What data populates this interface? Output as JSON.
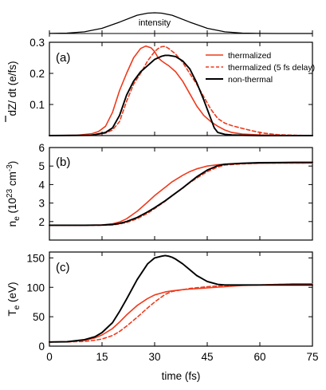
{
  "chart_data": [
    {
      "type": "line",
      "panel": "intensity",
      "annotation": "intensity",
      "xlim": [
        0,
        75
      ],
      "series": [
        {
          "color": "#000000",
          "dash": false,
          "x": [
            0,
            5,
            10,
            15,
            20,
            25,
            28,
            30,
            32,
            35,
            40,
            45,
            50,
            55,
            60,
            65,
            70,
            75
          ],
          "y": [
            0.005,
            0.02,
            0.08,
            0.25,
            0.55,
            0.88,
            0.98,
            1.0,
            0.98,
            0.88,
            0.55,
            0.25,
            0.08,
            0.02,
            0.005,
            0.001,
            0.0,
            0.0
          ]
        }
      ]
    },
    {
      "type": "line",
      "panel": "(a)",
      "panel_label": "(a)",
      "ylabel_main": "dZ",
      "ylabel_rest": "/ dt  (e/fs)",
      "xlim": [
        0,
        75
      ],
      "ylim": [
        0,
        0.3
      ],
      "yticks": [
        0.1,
        0.2,
        0.3
      ],
      "ytick_labels": [
        "0.1",
        "0.2",
        "0.3"
      ],
      "legend_position": "top-right",
      "series": [
        {
          "name": "thermalized",
          "color": "#ee3a1c",
          "dash": false,
          "x": [
            0,
            8,
            12,
            14,
            16,
            18,
            20,
            22,
            24,
            26,
            27.5,
            29,
            30,
            31,
            32,
            33,
            34,
            36,
            38,
            40,
            42,
            44,
            46,
            48,
            50,
            52,
            55,
            60,
            65,
            70,
            75
          ],
          "y": [
            0,
            0.001,
            0.006,
            0.013,
            0.03,
            0.075,
            0.145,
            0.2,
            0.25,
            0.28,
            0.288,
            0.282,
            0.27,
            0.25,
            0.24,
            0.232,
            0.225,
            0.205,
            0.175,
            0.135,
            0.095,
            0.065,
            0.045,
            0.03,
            0.018,
            0.01,
            0.005,
            0.002,
            0.001,
            0,
            0
          ]
        },
        {
          "name": "thermalized (5 fs delay)",
          "color": "#ee3a1c",
          "dash": true,
          "x": [
            0,
            12,
            16,
            18,
            20,
            22,
            24,
            26,
            28,
            30,
            31,
            32,
            33,
            34,
            36,
            38,
            40,
            42,
            44,
            46,
            48,
            50,
            52,
            55,
            58,
            61,
            65,
            70,
            75
          ],
          "y": [
            0,
            0.001,
            0.008,
            0.018,
            0.045,
            0.11,
            0.165,
            0.2,
            0.24,
            0.27,
            0.28,
            0.286,
            0.287,
            0.28,
            0.262,
            0.235,
            0.2,
            0.165,
            0.125,
            0.085,
            0.055,
            0.04,
            0.032,
            0.023,
            0.015,
            0.008,
            0.003,
            0.001,
            0
          ]
        },
        {
          "name": "non-thermal",
          "color": "#000000",
          "dash": false,
          "x": [
            0,
            12,
            16,
            18,
            20,
            22,
            24,
            26,
            28,
            30,
            32,
            33,
            34,
            36,
            38,
            40,
            42,
            44,
            46,
            47,
            48,
            50,
            52,
            55,
            60,
            65,
            70,
            75
          ],
          "y": [
            0,
            0.001,
            0.01,
            0.025,
            0.065,
            0.13,
            0.175,
            0.205,
            0.225,
            0.245,
            0.255,
            0.258,
            0.258,
            0.254,
            0.24,
            0.215,
            0.17,
            0.115,
            0.055,
            0.025,
            0.01,
            0.004,
            0.002,
            0.001,
            0,
            0,
            0,
            0
          ]
        }
      ]
    },
    {
      "type": "line",
      "panel": "(b)",
      "panel_label": "(b)",
      "ylabel_main": "n",
      "ylabel_sub": "e",
      "ylabel_mid": " (10",
      "ylabel_sup": "23",
      "ylabel_unit": " cm",
      "ylabel_unit_sup": "-3",
      "ylabel_end": ")",
      "xlim": [
        0,
        75
      ],
      "ylim": [
        1,
        6
      ],
      "yticks": [
        2,
        3,
        4,
        5,
        6
      ],
      "ytick_labels": [
        "2",
        "3",
        "4",
        "5",
        "6"
      ],
      "series": [
        {
          "name": "thermalized",
          "color": "#ee3a1c",
          "dash": false,
          "x": [
            0,
            10,
            15,
            18,
            20,
            22,
            25,
            28,
            30,
            33,
            35,
            38,
            40,
            42,
            45,
            48,
            50,
            55,
            60,
            65,
            70,
            75
          ],
          "y": [
            1.8,
            1.8,
            1.82,
            1.88,
            1.98,
            2.15,
            2.55,
            3.05,
            3.4,
            3.85,
            4.15,
            4.5,
            4.7,
            4.85,
            5.0,
            5.07,
            5.1,
            5.14,
            5.15,
            5.16,
            5.16,
            5.17
          ]
        },
        {
          "name": "thermalized (5 fs delay)",
          "color": "#ee3a1c",
          "dash": true,
          "x": [
            0,
            10,
            15,
            18,
            20,
            22,
            25,
            28,
            30,
            33,
            35,
            38,
            40,
            42,
            45,
            48,
            50,
            55,
            60,
            65,
            70,
            75
          ],
          "y": [
            1.8,
            1.8,
            1.8,
            1.82,
            1.87,
            1.95,
            2.15,
            2.45,
            2.7,
            3.1,
            3.4,
            3.8,
            4.1,
            4.35,
            4.7,
            4.95,
            5.05,
            5.12,
            5.15,
            5.16,
            5.16,
            5.17
          ]
        },
        {
          "name": "non-thermal",
          "color": "#000000",
          "dash": false,
          "x": [
            0,
            10,
            15,
            18,
            20,
            22,
            25,
            28,
            30,
            33,
            35,
            38,
            40,
            42,
            45,
            48,
            50,
            55,
            60,
            65,
            70,
            75
          ],
          "y": [
            1.8,
            1.8,
            1.81,
            1.84,
            1.9,
            2.0,
            2.22,
            2.52,
            2.75,
            3.12,
            3.4,
            3.82,
            4.12,
            4.42,
            4.78,
            5.02,
            5.1,
            5.15,
            5.18,
            5.19,
            5.2,
            5.2
          ]
        }
      ]
    },
    {
      "type": "line",
      "panel": "(c)",
      "panel_label": "(c)",
      "ylabel_main": "T",
      "ylabel_sub": "e",
      "ylabel_rest": " (eV)",
      "xlabel": "time (fs)",
      "xlim": [
        0,
        75
      ],
      "ylim": [
        0,
        160
      ],
      "xticks": [
        0,
        15,
        30,
        45,
        60,
        75
      ],
      "xtick_labels": [
        "0",
        "15",
        "30",
        "45",
        "60",
        "75"
      ],
      "yticks": [
        0,
        50,
        100,
        150
      ],
      "ytick_labels": [
        "0",
        "50",
        "100",
        "150"
      ],
      "series": [
        {
          "name": "thermalized",
          "color": "#ee3a1c",
          "dash": false,
          "x": [
            0,
            5,
            10,
            13,
            15,
            18,
            20,
            22,
            25,
            28,
            30,
            33,
            35,
            38,
            40,
            45,
            50,
            55,
            60,
            65,
            70,
            75
          ],
          "y": [
            7,
            7.5,
            10,
            14,
            19,
            30,
            41,
            53,
            69,
            81,
            87,
            92,
            94,
            96,
            97,
            99,
            101,
            103,
            104,
            105,
            106,
            106
          ]
        },
        {
          "name": "thermalized (5 fs delay)",
          "color": "#ee3a1c",
          "dash": true,
          "x": [
            0,
            5,
            10,
            13,
            15,
            18,
            20,
            22,
            25,
            28,
            30,
            33,
            35,
            38,
            40,
            45,
            50,
            55,
            60,
            65,
            70,
            75
          ],
          "y": [
            7,
            7.2,
            8,
            10,
            12,
            18,
            25,
            34,
            49,
            65,
            75,
            88,
            93,
            96,
            98,
            101,
            103,
            104,
            104,
            105,
            106,
            106
          ]
        },
        {
          "name": "non-thermal",
          "color": "#000000",
          "dash": false,
          "x": [
            0,
            5,
            10,
            13,
            15,
            18,
            20,
            22,
            25,
            28,
            30,
            32,
            33,
            34,
            35,
            36,
            38,
            40,
            42,
            45,
            48,
            50,
            55,
            60,
            65,
            70,
            75
          ],
          "y": [
            7,
            7.5,
            11,
            16,
            23,
            40,
            59,
            80,
            113,
            140,
            150,
            153,
            154,
            153,
            151,
            148,
            140,
            130,
            120,
            110,
            105,
            104,
            104,
            104,
            104,
            104,
            104
          ]
        }
      ]
    }
  ]
}
